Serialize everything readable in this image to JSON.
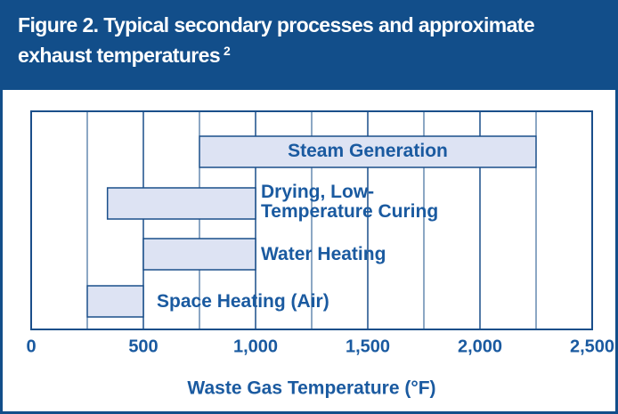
{
  "chart_data": {
    "type": "range_bar",
    "title": "Figure 2. Typical secondary processes and approximate exhaust temperatures",
    "title_note": "2",
    "xlabel": "Waste Gas Temperature (°F)",
    "categories": [
      "Steam Generation",
      "Drying, Low-\nTemperature Curing",
      "Water Heating",
      "Space Heating (Air)"
    ],
    "low": [
      750,
      340,
      500,
      250
    ],
    "high": [
      2250,
      1000,
      1000,
      500
    ],
    "color": "#dde3f3",
    "edge_color": "#1a4f8a",
    "xlim": [
      0,
      2500
    ],
    "xticks": [
      0,
      500,
      {
        "value": 1000,
        "label": "1,000"
      },
      {
        "value": 1500,
        "label": "1,500"
      },
      {
        "value": 2000,
        "label": "2,000"
      },
      {
        "value": 2500,
        "label": "2,500"
      }
    ],
    "minor_xticks": [
      250,
      750,
      1250,
      1750,
      2250
    ],
    "grid": true
  }
}
